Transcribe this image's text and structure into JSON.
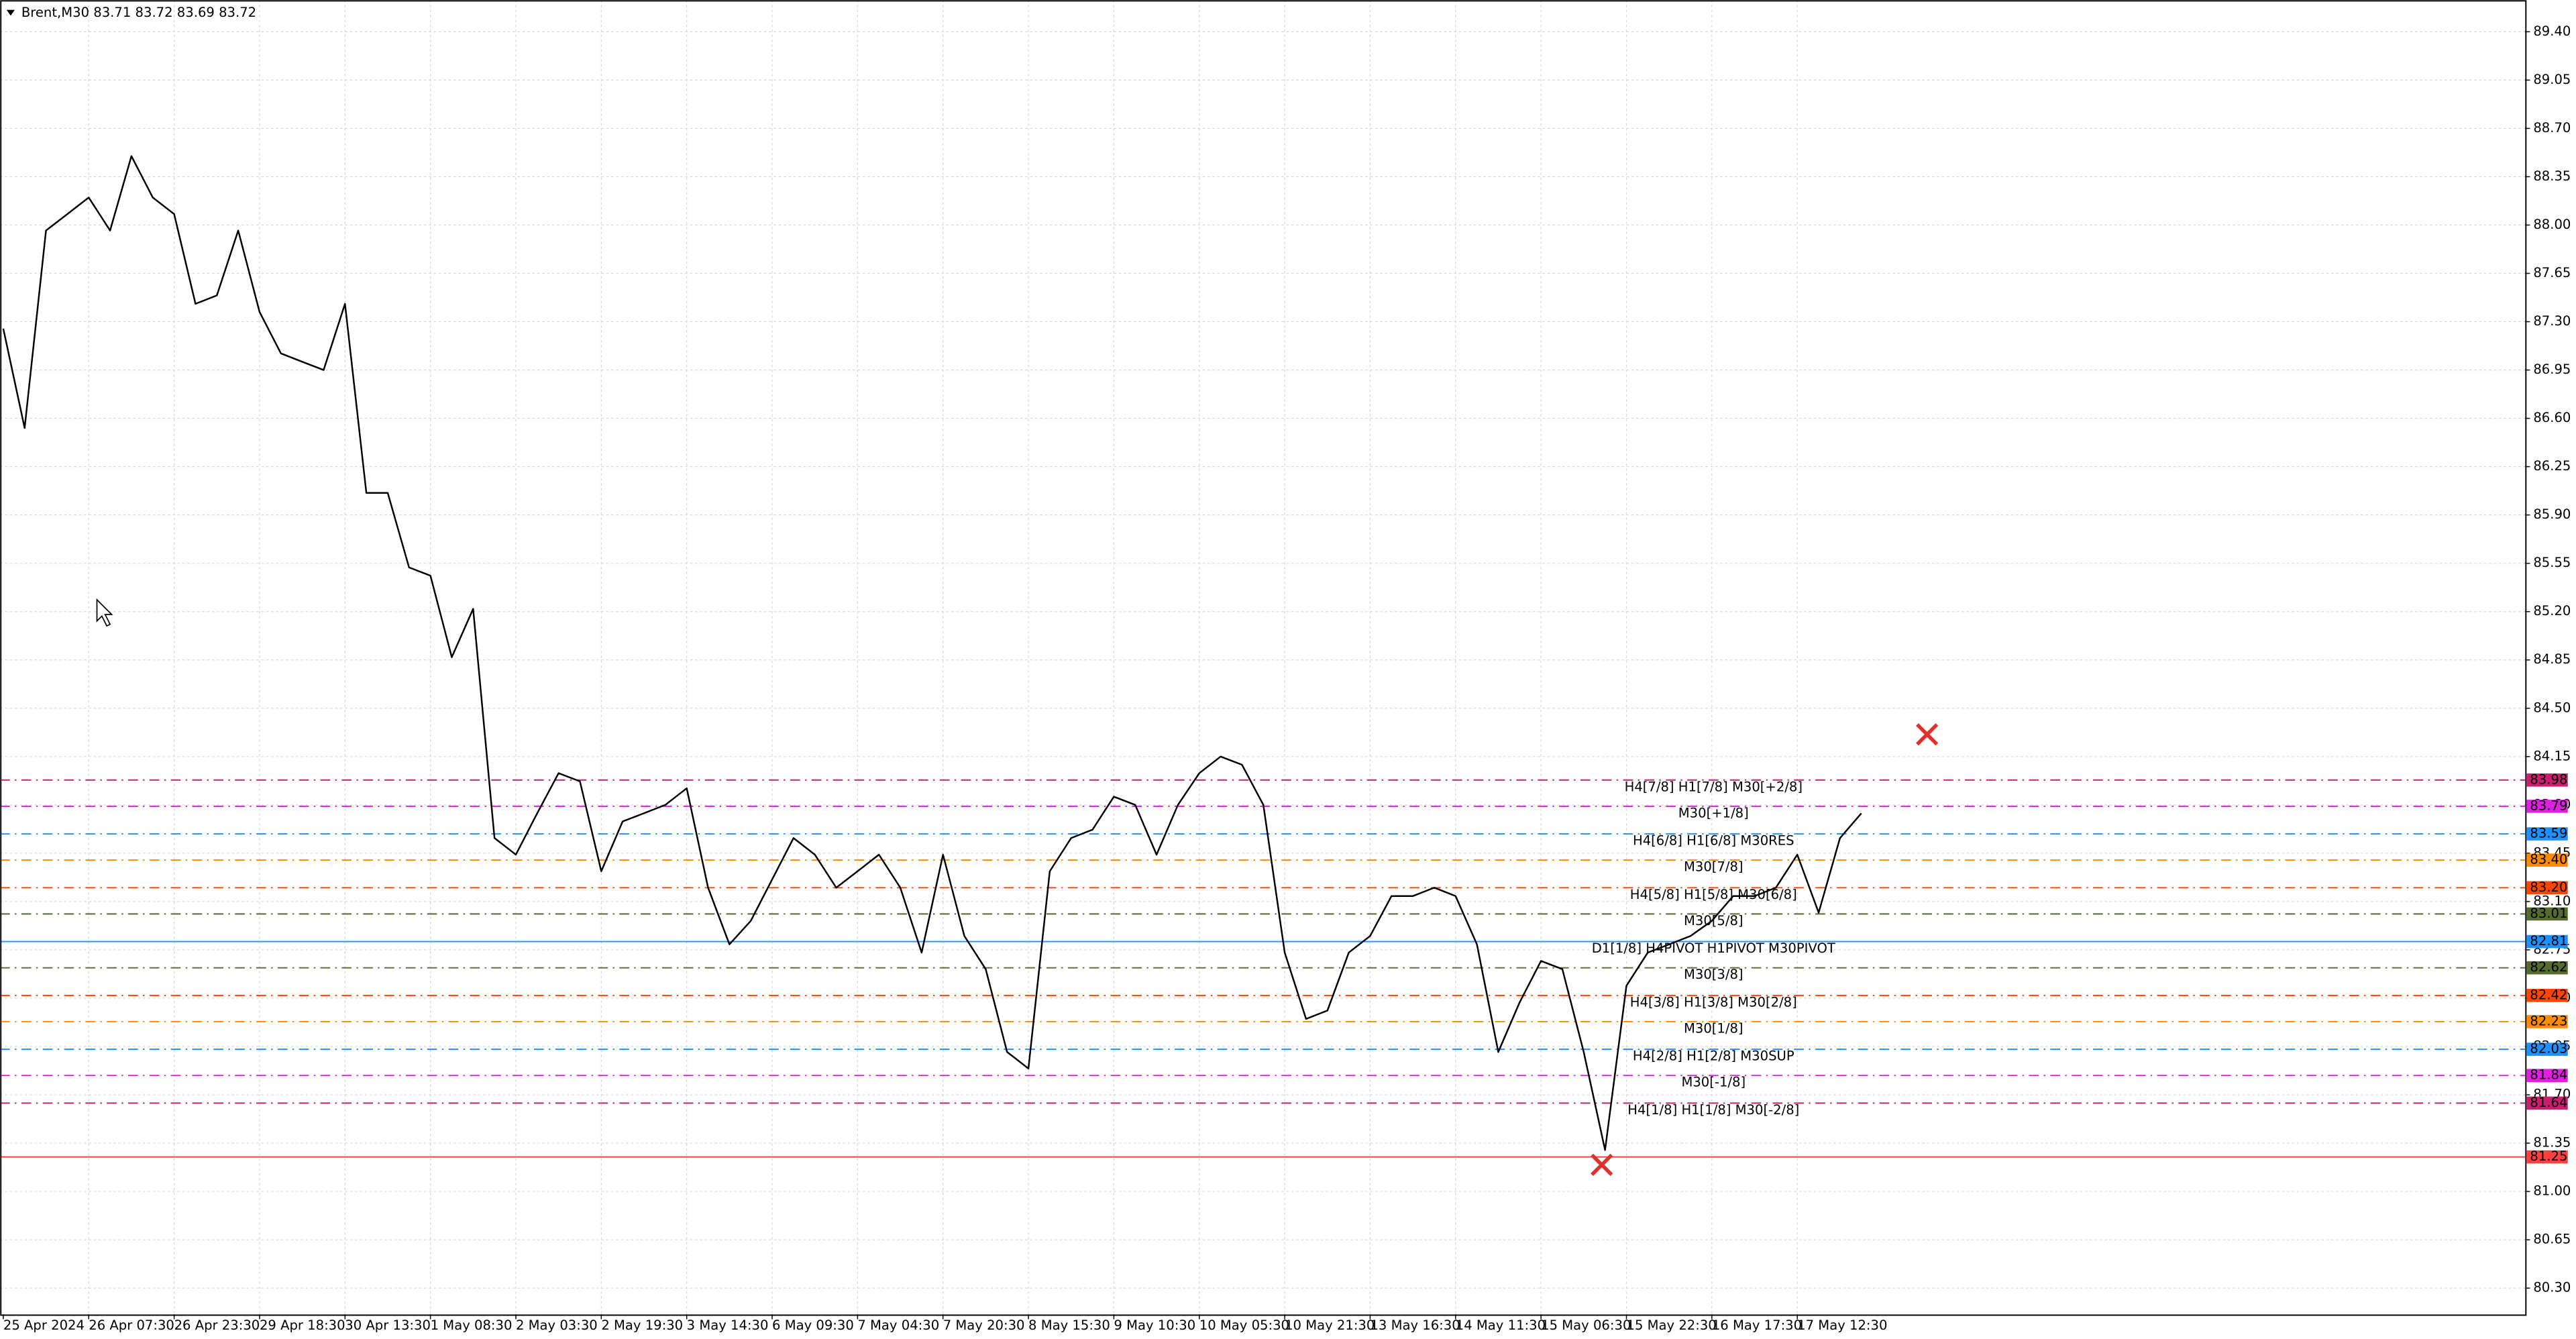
{
  "chart_data": {
    "type": "line",
    "title": "Brent,M30  83.71 83.72 83.69 83.72",
    "color": "#000000",
    "grid": true,
    "ylim": [
      80.11,
      89.63
    ],
    "yticks": [
      {
        "value": 80.3,
        "label": "80.30"
      },
      80.65,
      {
        "value": 81.0,
        "label": "81.00"
      },
      81.35,
      {
        "value": 81.7,
        "label": "81.70"
      },
      82.05,
      {
        "value": 82.4,
        "label": "82.40"
      },
      82.75,
      {
        "value": 83.1,
        "label": "83.10"
      },
      83.45,
      {
        "value": 83.8,
        "label": "83.80"
      },
      84.15,
      {
        "value": 84.5,
        "label": "84.50"
      },
      84.85,
      {
        "value": 85.2,
        "label": "85.20"
      },
      85.55,
      {
        "value": 85.9,
        "label": "85.90"
      },
      86.25,
      {
        "value": 86.6,
        "label": "86.60"
      },
      86.95,
      {
        "value": 87.3,
        "label": "87.30"
      },
      87.65,
      {
        "value": 88.0,
        "label": "88.00"
      },
      88.35,
      {
        "value": 88.7,
        "label": "88.70"
      },
      89.05,
      {
        "value": 89.4,
        "label": "89.40"
      }
    ],
    "categories": [
      "25 Apr 2024",
      null,
      null,
      null,
      "26 Apr 07:30",
      null,
      null,
      null,
      "26 Apr 23:30",
      null,
      null,
      null,
      "29 Apr 18:30",
      null,
      null,
      null,
      "30 Apr 13:30",
      null,
      null,
      null,
      "1 May 08:30",
      null,
      null,
      null,
      "2 May 03:30",
      null,
      null,
      null,
      "2 May 19:30",
      null,
      null,
      null,
      "3 May 14:30",
      null,
      null,
      null,
      "6 May 09:30",
      null,
      null,
      null,
      "7 May 04:30",
      null,
      null,
      null,
      "7 May 20:30",
      null,
      null,
      null,
      "8 May 15:30",
      null,
      null,
      null,
      "9 May 10:30",
      null,
      null,
      null,
      "10 May 05:30",
      null,
      null,
      null,
      "10 May 21:30",
      null,
      null,
      null,
      "13 May 16:30",
      null,
      null,
      null,
      "14 May 11:30",
      null,
      null,
      null,
      "15 May 06:30",
      null,
      null,
      null,
      "15 May 22:30",
      null,
      null,
      null,
      "16 May 17:30",
      null,
      null,
      null,
      "17 May 12:30",
      null,
      null,
      null
    ],
    "values": [
      87.25,
      86.53,
      87.96,
      88.08,
      88.2,
      87.96,
      88.5,
      88.2,
      88.08,
      87.43,
      87.49,
      87.96,
      87.37,
      87.07,
      87.01,
      86.95,
      87.43,
      86.06,
      86.06,
      85.52,
      85.46,
      84.87,
      85.22,
      83.56,
      83.44,
      83.74,
      84.03,
      83.97,
      83.32,
      83.68,
      83.74,
      83.8,
      83.92,
      83.2,
      82.79,
      82.96,
      83.26,
      83.56,
      83.44,
      83.2,
      83.32,
      83.44,
      83.2,
      82.73,
      83.44,
      82.85,
      82.61,
      82.01,
      81.89,
      83.32,
      83.56,
      83.62,
      83.86,
      83.8,
      83.44,
      83.8,
      84.03,
      84.15,
      84.09,
      83.8,
      82.73,
      82.25,
      82.31,
      82.73,
      82.85,
      83.14,
      83.14,
      83.2,
      83.14,
      82.79,
      82.01,
      82.37,
      82.67,
      82.61,
      82.01,
      81.3,
      82.49,
      82.73,
      82.79,
      82.85,
      82.96,
      83.14,
      83.14,
      83.2,
      83.44,
      83.02,
      83.56,
      83.74
    ],
    "levels": [
      {
        "value": 83.98,
        "tag": "83.98",
        "name": "H4[7/8] H1[7/8] M30[+2/8]",
        "color": "#c8206e",
        "dash": true
      },
      {
        "value": 83.79,
        "tag": "83.79",
        "name": "M30[+1/8]",
        "color": "#e020e0",
        "dash": true
      },
      {
        "value": 83.59,
        "tag": "83.59",
        "name": "H4[6/8] H1[6/8] M30RES",
        "color": "#1e90ff",
        "dash": true
      },
      {
        "value": 83.4,
        "tag": "83.40",
        "name": "M30[7/8]",
        "color": "#ff8c00",
        "dash": true
      },
      {
        "value": 83.2,
        "tag": "83.20",
        "name": "H4[5/8] H1[5/8] M30[6/8]",
        "color": "#ff4500",
        "dash": true
      },
      {
        "value": 83.01,
        "tag": "83.01",
        "name": "M30[5/8]",
        "color": "#556b2f",
        "dash": true
      },
      {
        "value": 82.81,
        "tag": "82.81",
        "name": "D1[1/8] H4PIVOT H1PIVOT M30PIVOT",
        "color": "#1e90ff",
        "dash": false
      },
      {
        "value": 82.62,
        "tag": "82.62",
        "name": "M30[3/8]",
        "color": "#556b2f",
        "dash": true
      },
      {
        "value": 82.42,
        "tag": "82.42",
        "name": "H4[3/8] H1[3/8] M30[2/8]",
        "color": "#ff4500",
        "dash": true
      },
      {
        "value": 82.23,
        "tag": "82.23",
        "name": "M30[1/8]",
        "color": "#ff8c00",
        "dash": true
      },
      {
        "value": 82.03,
        "tag": "82.03",
        "name": "H4[2/8] H1[2/8] M30SUP",
        "color": "#1e90ff",
        "dash": true
      },
      {
        "value": 81.84,
        "tag": "81.84",
        "name": "M30[-1/8]",
        "color": "#e020e0",
        "dash": true
      },
      {
        "value": 81.64,
        "tag": "81.64",
        "name": "H4[1/8] H1[1/8] M30[-2/8]",
        "color": "#c8206e",
        "dash": true
      },
      {
        "value": 81.25,
        "tag": "81.25",
        "color": "#ff4040",
        "dash": false
      }
    ]
  }
}
